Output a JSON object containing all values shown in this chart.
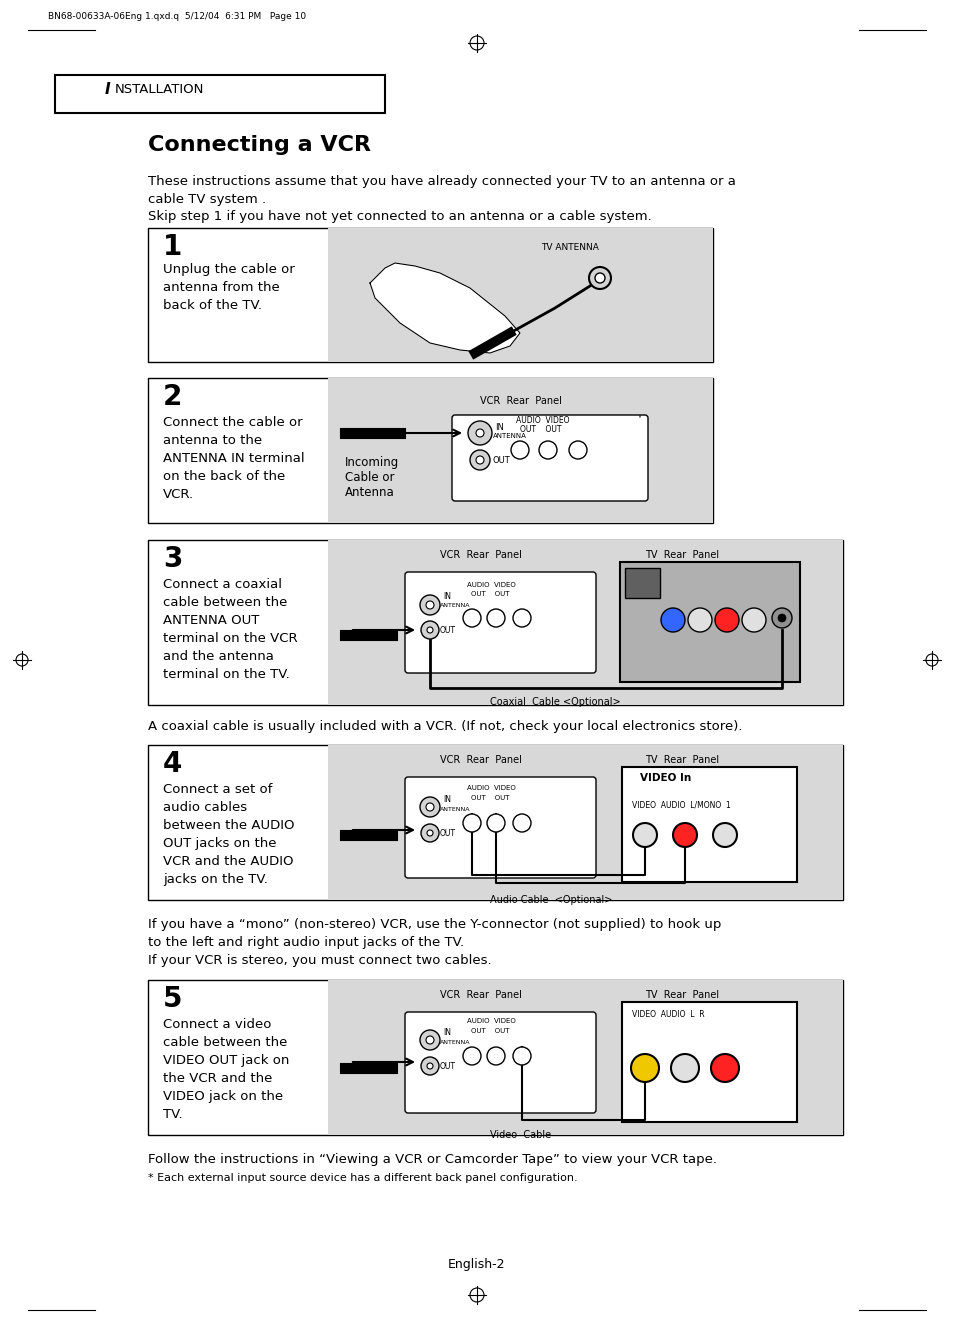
{
  "page_header": "BN68-00633A-06Eng 1.qxd.q  5/12/04  6:31 PM   Page 10",
  "section_label": "NSTALLATION",
  "section_label_prefix": "I",
  "title": "Connecting a VCR",
  "intro_line1": "These instructions assume that you have already connected your TV to an antenna or a",
  "intro_line2": "cable TV system .",
  "intro_line3": "Skip step 1 if you have not yet connected to an antenna or a cable system.",
  "step1_num": "1",
  "step1_text": [
    "Unplug the cable or",
    "antenna from the",
    "back of the TV."
  ],
  "step2_num": "2",
  "step2_text": [
    "Connect the cable or",
    "antenna to the",
    "ANTENNA IN terminal",
    "on the back of the",
    "VCR."
  ],
  "step3_num": "3",
  "step3_text": [
    "Connect a coaxial",
    "cable between the",
    "ANTENNA OUT",
    "terminal on the VCR",
    "and the antenna",
    "terminal on the TV."
  ],
  "step3_note": "A coaxial cable is usually included with a VCR. (If not, check your local electronics store).",
  "step3_cable_label": "Coaxial  Cable <Optional>",
  "step4_num": "4",
  "step4_text": [
    "Connect a set of",
    "audio cables",
    "between the AUDIO",
    "OUT jacks on the",
    "VCR and the AUDIO",
    "jacks on the TV."
  ],
  "step4_cable_label": "Audio Cable  <Optional>",
  "step4_note_line1": "If you have a “mono” (non-stereo) VCR, use the Y-connector (not supplied) to hook up",
  "step4_note_line2": "to the left and right audio input jacks of the TV.",
  "step4_note_line3": "If your VCR is stereo, you must connect two cables.",
  "step5_num": "5",
  "step5_text": [
    "Connect a video",
    "cable between the",
    "VIDEO OUT jack on",
    "the VCR and the",
    "VIDEO jack on the",
    "TV."
  ],
  "step5_cable_label": "Video  Cable",
  "step5_note": "Follow the instructions in “Viewing a VCR or Camcorder Tape” to view your VCR tape.",
  "step5_footnote": "* Each external input source device has a different back panel configuration.",
  "page_footer": "English-2",
  "bg_color": "#ffffff",
  "light_gray": "#d8d8d8",
  "med_gray": "#c0c0c0",
  "dark_gray": "#808080"
}
